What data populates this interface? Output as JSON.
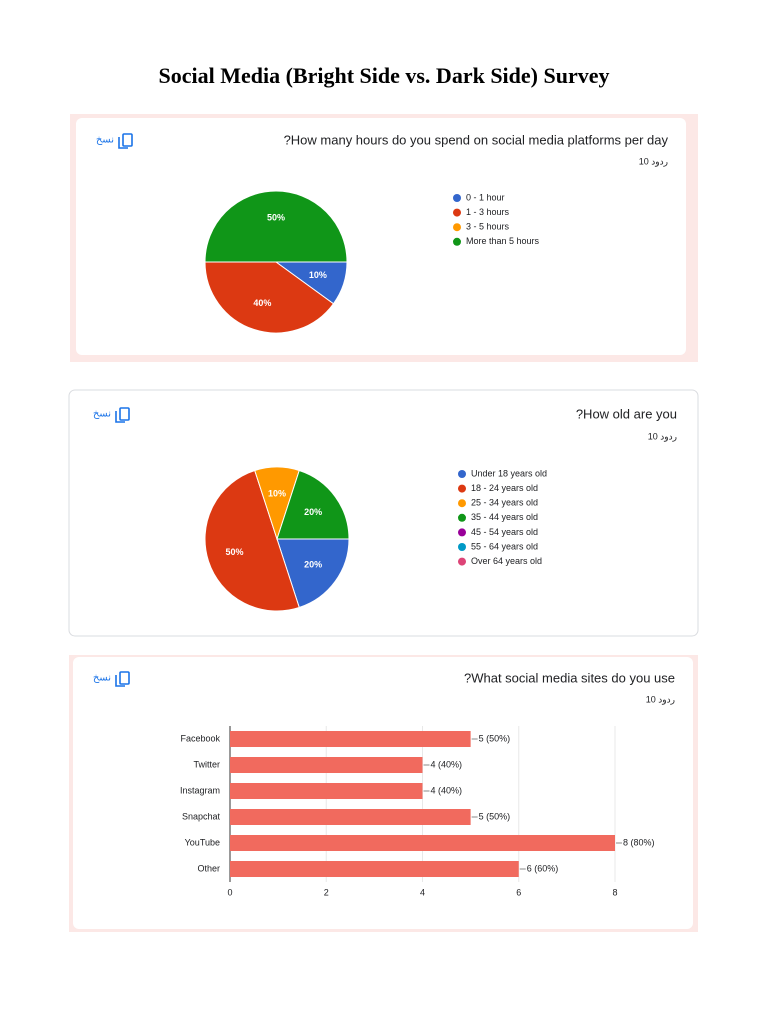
{
  "title": "Social Media (Bright Side vs. Dark Side) Survey",
  "chart_data": [
    {
      "type": "pie",
      "title": "?How many hours do you spend on social media platforms per day",
      "subtitle": "10 ردود",
      "copy_label": "نسخ",
      "categories": [
        "0 - 1 hour",
        "1 - 3 hours",
        "3 - 5 hours",
        "More than 5 hours"
      ],
      "values": [
        10,
        40,
        0,
        50
      ],
      "value_labels": [
        "10%",
        "40%",
        null,
        "50%"
      ],
      "colors": [
        "#3366cc",
        "#dc3912",
        "#ff9900",
        "#109618"
      ]
    },
    {
      "type": "pie",
      "title": "?How old are you",
      "subtitle": "10 ردود",
      "copy_label": "نسخ",
      "categories": [
        "Under 18 years old",
        "18 - 24 years old",
        "25 - 34 years old",
        "35 - 44 years old",
        "45 - 54 years old",
        "55 - 64 years old",
        "Over 64 years old"
      ],
      "values": [
        20,
        50,
        10,
        20,
        0,
        0,
        0
      ],
      "value_labels": [
        "20%",
        "50%",
        "10%",
        "20%",
        null,
        null,
        null
      ],
      "colors": [
        "#3366cc",
        "#dc3912",
        "#ff9900",
        "#109618",
        "#990099",
        "#0099c6",
        "#dd4477"
      ]
    },
    {
      "type": "hbar",
      "title": "?What social media sites do you use",
      "subtitle": "10 ردود",
      "copy_label": "نسخ",
      "categories": [
        "Facebook",
        "Twitter",
        "Instagram",
        "Snapchat",
        "YouTube",
        "Other"
      ],
      "values": [
        5,
        4,
        4,
        5,
        8,
        6
      ],
      "value_labels": [
        "5 (50%)",
        "4 (40%)",
        "4 (40%)",
        "5 (50%)",
        "8 (80%)",
        "6 (60%)"
      ],
      "color": "#f16a5e",
      "xlim": [
        0,
        8
      ],
      "xticks": [
        0,
        2,
        4,
        6,
        8
      ],
      "grid": true
    }
  ]
}
